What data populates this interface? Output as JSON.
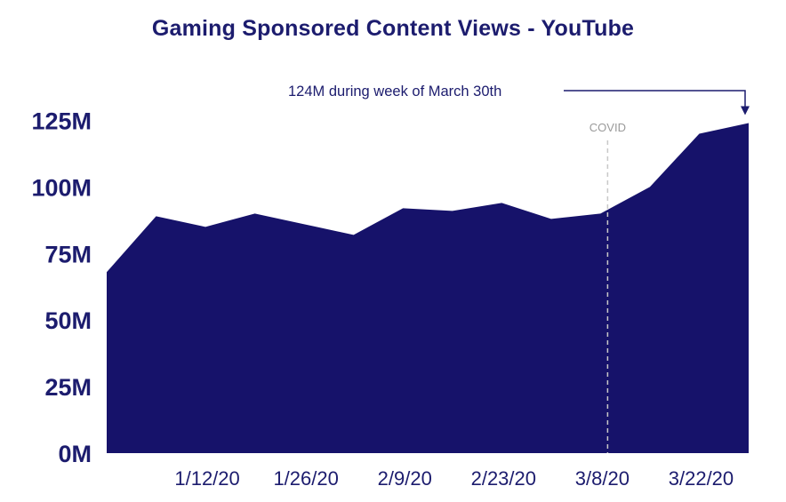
{
  "colors": {
    "area": "#16126a",
    "title": "#1c1c6e",
    "axis_text": "#1c1c6e",
    "annotation": "#1c1c6e",
    "covid_line": "#c8c8c8",
    "covid_text": "#9a9a9a"
  },
  "chart_data": {
    "type": "area",
    "title": "Gaming Sponsored Content Views - YouTube",
    "xlabel": "",
    "ylabel": "",
    "ylim": [
      0,
      125
    ],
    "y_unit": "M",
    "y_ticks": [
      0,
      25,
      50,
      75,
      100,
      125
    ],
    "y_tick_labels": [
      "0M",
      "25M",
      "50M",
      "75M",
      "100M",
      "125M"
    ],
    "x": [
      "12/29/19",
      "1/5/20",
      "1/12/20",
      "1/19/20",
      "1/26/20",
      "2/2/20",
      "2/9/20",
      "2/16/20",
      "2/23/20",
      "3/1/20",
      "3/8/20",
      "3/15/20",
      "3/22/20",
      "3/29/20"
    ],
    "x_tick_labels": [
      "1/12/20",
      "1/26/20",
      "2/9/20",
      "2/23/20",
      "3/8/20",
      "3/22/20"
    ],
    "values": [
      68,
      89,
      85,
      90,
      86,
      82,
      92,
      91,
      94,
      88,
      90,
      100,
      120,
      124
    ],
    "grid": false,
    "legend": "none",
    "annotations": [
      {
        "text": "124M during week of March 30th",
        "target_x": "3/29/20",
        "target_value": 124
      },
      {
        "text": "COVID",
        "x": "3/8/20",
        "style": "dashed-vertical-line"
      }
    ]
  }
}
